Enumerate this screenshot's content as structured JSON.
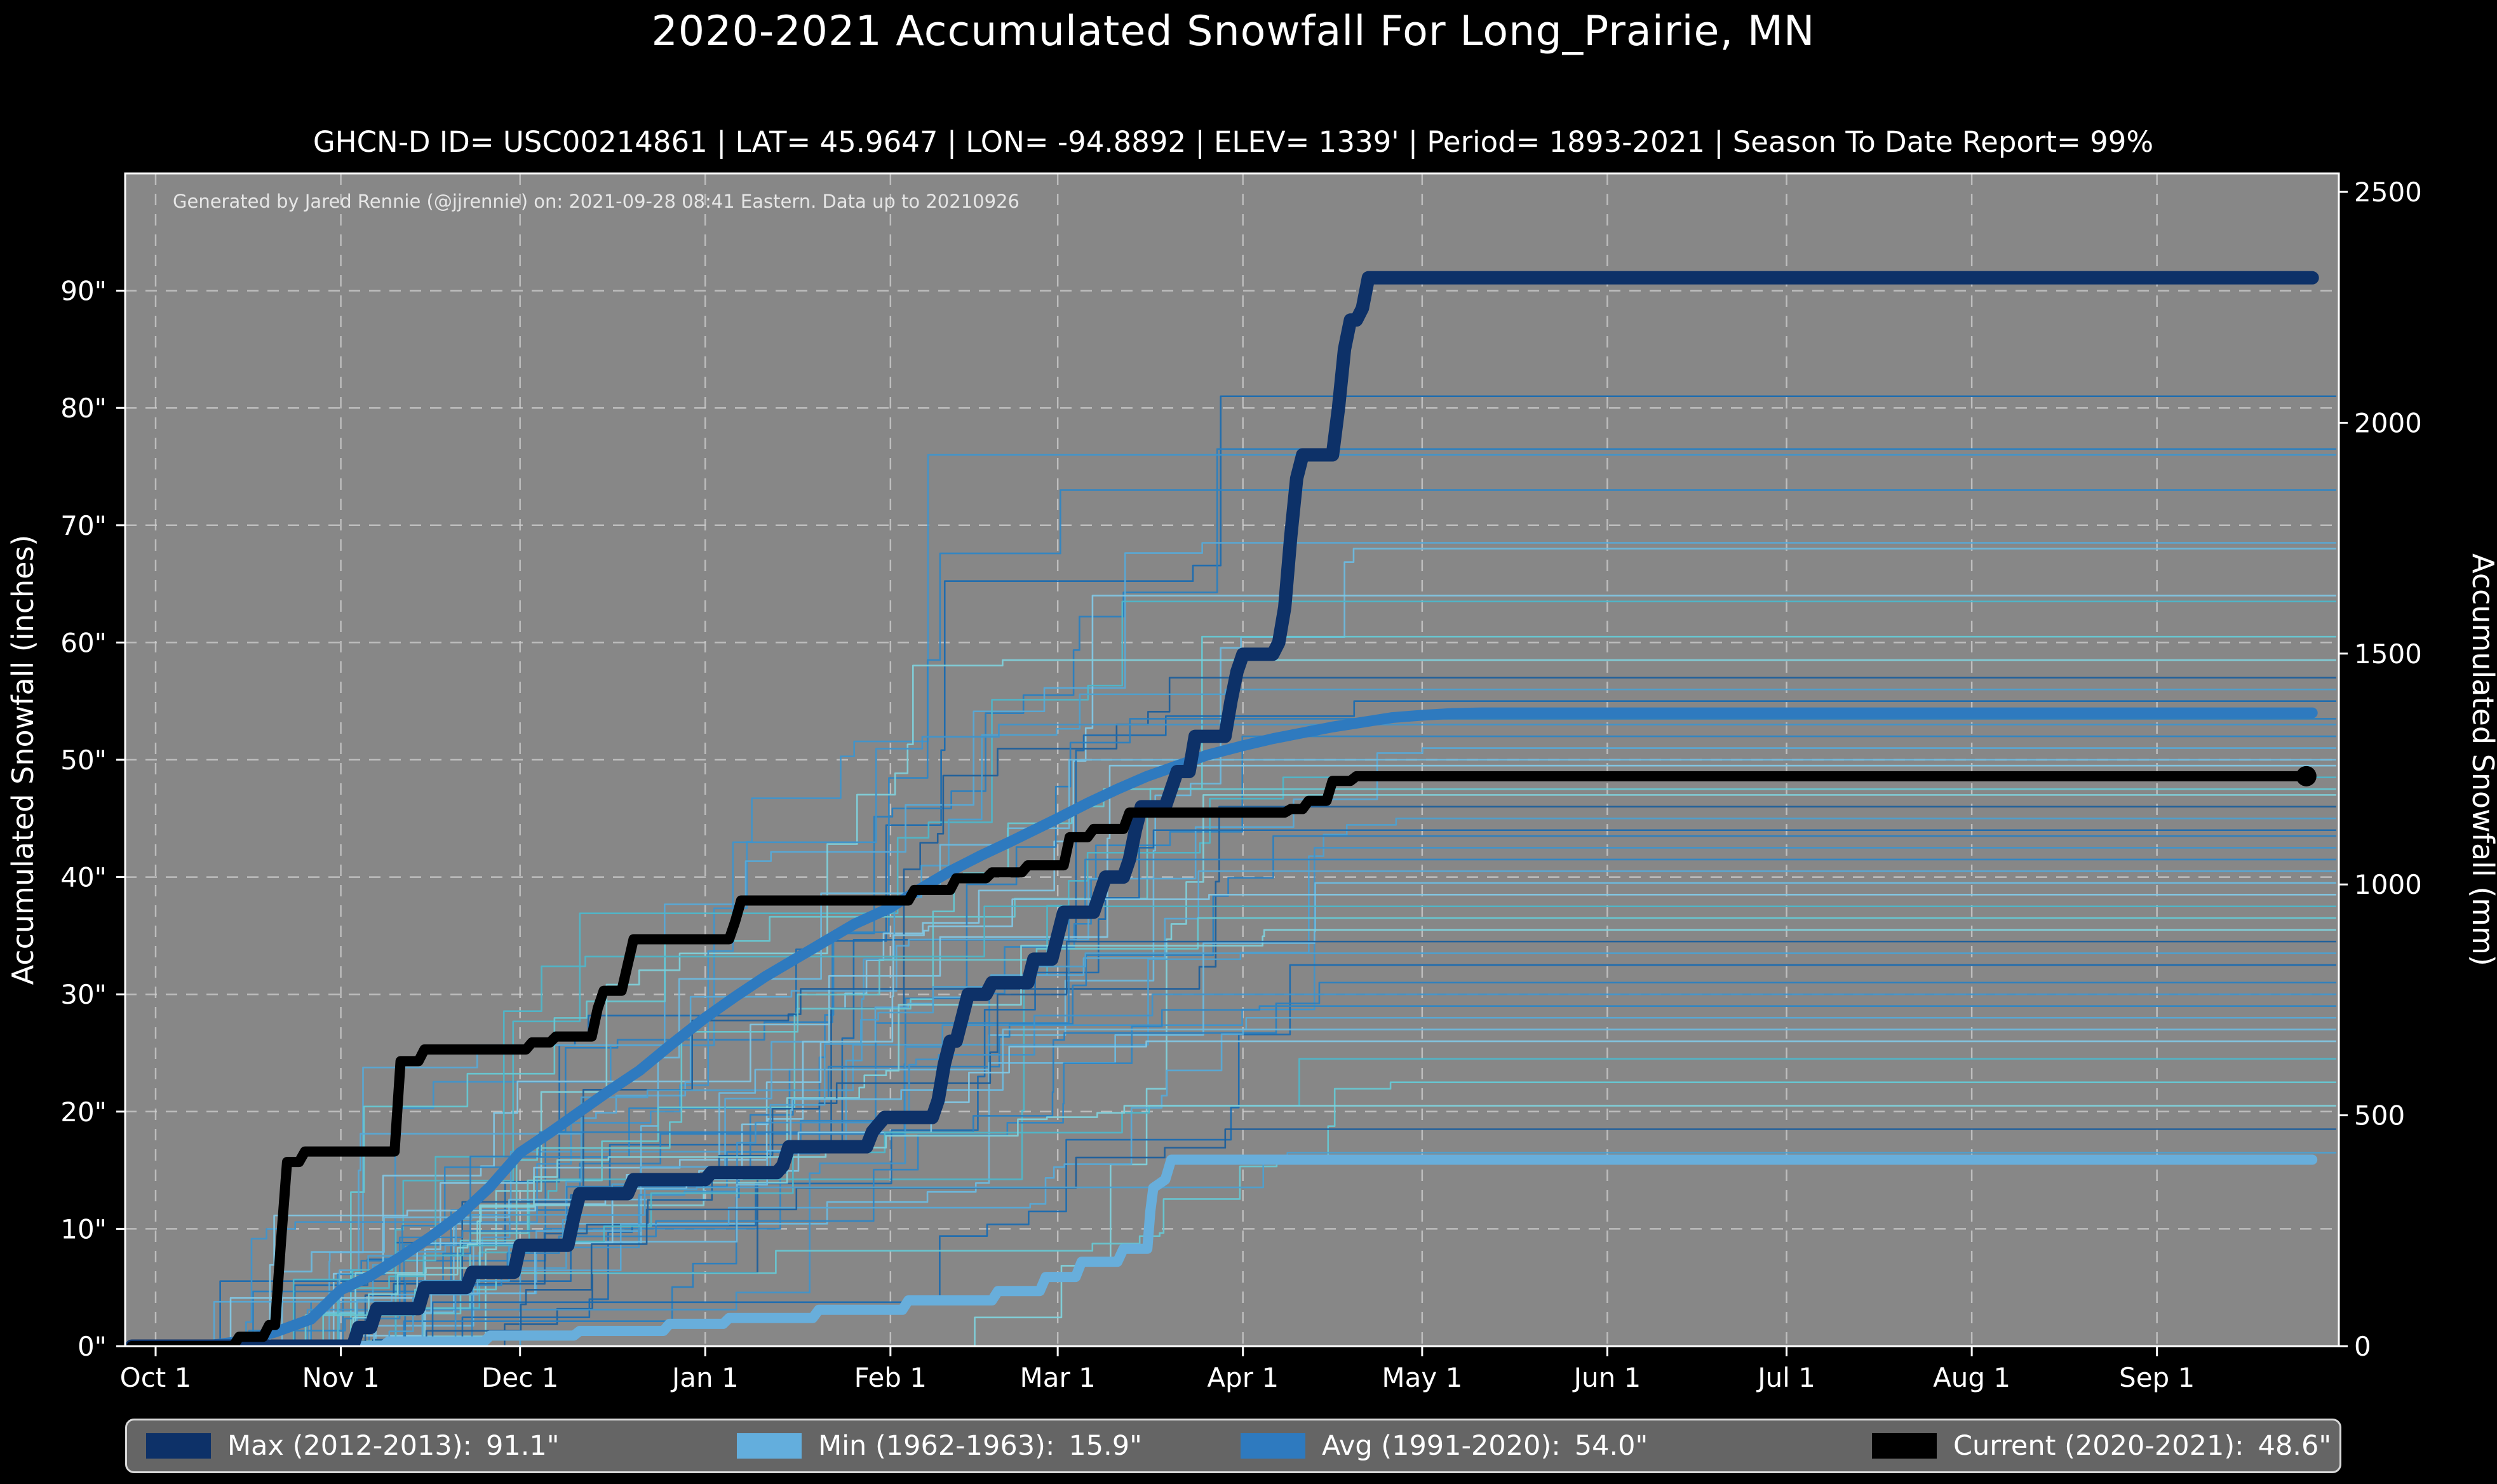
{
  "header": {
    "title": "2020-2021 Accumulated Snowfall For Long_Prairie, MN",
    "subtitle": "GHCN-D ID= USC00214861 | LAT= 45.9647 | LON= -94.8892 | ELEV= 1339' | Period= 1893-2021 | Season To Date Report= 99%"
  },
  "attribution": "Generated by Jared Rennie (@jjrennie) on: 2021-09-28 08:41 Eastern. Data up to 20210926",
  "colors": {
    "page_bg": "#000000",
    "plot_bg": "#878787",
    "grid": "#cfcfcf",
    "spine": "#ffffff",
    "text": "#ffffff",
    "legend_bg": "#656565",
    "max_line": "#0d3168",
    "min_line": "#68aedb",
    "avg_line": "#2e7abf",
    "current_line": "#000000"
  },
  "chart_data": {
    "type": "line",
    "title": "2020-2021 Accumulated Snowfall For Long_Prairie, MN",
    "xlabel": "",
    "ylabel_left": "Accumulated Snowfall (inches)",
    "ylabel_right": "Accumulated Snowfall (mm)",
    "ylim_inches": [
      0,
      100
    ],
    "ylim_mm": [
      0,
      2540
    ],
    "x_range_days": [
      -5,
      365
    ],
    "grid": "dashed",
    "legend_position": "bottom",
    "x_axis": {
      "ticks": [
        {
          "label": "Oct 1",
          "day": 0
        },
        {
          "label": "Nov 1",
          "day": 31
        },
        {
          "label": "Dec 1",
          "day": 61
        },
        {
          "label": "Jan 1",
          "day": 92
        },
        {
          "label": "Feb 1",
          "day": 123
        },
        {
          "label": "Mar 1",
          "day": 151
        },
        {
          "label": "Apr 1",
          "day": 182
        },
        {
          "label": "May 1",
          "day": 212
        },
        {
          "label": "Jun 1",
          "day": 243
        },
        {
          "label": "Jul 1",
          "day": 273
        },
        {
          "label": "Aug 1",
          "day": 304
        },
        {
          "label": "Sep 1",
          "day": 335
        }
      ]
    },
    "y_axis_left": {
      "label": "Accumulated Snowfall (inches)",
      "ticks": [
        {
          "label": "0\"",
          "value": 0
        },
        {
          "label": "10\"",
          "value": 10
        },
        {
          "label": "20\"",
          "value": 20
        },
        {
          "label": "30\"",
          "value": 30
        },
        {
          "label": "40\"",
          "value": 40
        },
        {
          "label": "50\"",
          "value": 50
        },
        {
          "label": "60\"",
          "value": 60
        },
        {
          "label": "70\"",
          "value": 70
        },
        {
          "label": "80\"",
          "value": 80
        },
        {
          "label": "90\"",
          "value": 90
        }
      ]
    },
    "y_axis_right": {
      "label": "Accumulated Snowfall (mm)",
      "ticks": [
        {
          "label": "0",
          "mm": 0
        },
        {
          "label": "500",
          "mm": 500
        },
        {
          "label": "1000",
          "mm": 1000
        },
        {
          "label": "1500",
          "mm": 1500
        },
        {
          "label": "2000",
          "mm": 2000
        },
        {
          "label": "2500",
          "mm": 2500
        }
      ]
    },
    "series": [
      {
        "key": "max",
        "name": "Max (2012-2013)",
        "final": "91.1\"",
        "color": "#0d3168",
        "width": 21,
        "points": [
          [
            -4,
            0
          ],
          [
            33,
            0
          ],
          [
            34,
            1.6
          ],
          [
            36,
            1.6
          ],
          [
            37,
            3.2
          ],
          [
            44,
            3.2
          ],
          [
            45,
            5.0
          ],
          [
            52,
            5.0
          ],
          [
            53,
            6.3
          ],
          [
            60,
            6.3
          ],
          [
            61,
            8.6
          ],
          [
            69,
            8.6
          ],
          [
            70,
            11
          ],
          [
            71,
            13
          ],
          [
            79,
            13
          ],
          [
            80,
            14.2
          ],
          [
            92,
            14.2
          ],
          [
            93,
            14.8
          ],
          [
            104,
            14.8
          ],
          [
            105,
            15.4
          ],
          [
            106,
            17
          ],
          [
            119,
            17
          ],
          [
            120,
            18.3
          ],
          [
            122,
            19.5
          ],
          [
            130,
            19.5
          ],
          [
            131,
            21
          ],
          [
            132,
            24
          ],
          [
            133,
            26
          ],
          [
            134,
            26
          ],
          [
            135,
            28
          ],
          [
            136,
            30
          ],
          [
            139,
            30
          ],
          [
            140,
            31
          ],
          [
            146,
            31
          ],
          [
            147,
            33
          ],
          [
            150,
            33
          ],
          [
            151,
            35
          ],
          [
            152,
            37
          ],
          [
            157,
            37
          ],
          [
            158,
            38.5
          ],
          [
            159,
            40
          ],
          [
            162,
            40
          ],
          [
            163,
            41.5
          ],
          [
            164,
            44
          ],
          [
            165,
            46
          ],
          [
            169,
            46
          ],
          [
            170,
            47.5
          ],
          [
            171,
            49
          ],
          [
            173,
            49
          ],
          [
            174,
            52
          ],
          [
            179,
            52
          ],
          [
            180,
            55
          ],
          [
            181,
            57.5
          ],
          [
            182,
            59
          ],
          [
            187,
            59
          ],
          [
            188,
            60
          ],
          [
            189,
            63
          ],
          [
            190,
            69
          ],
          [
            191,
            74
          ],
          [
            192,
            76
          ],
          [
            197,
            76
          ],
          [
            198,
            80
          ],
          [
            199,
            85
          ],
          [
            200,
            87.5
          ],
          [
            201,
            87.5
          ],
          [
            202,
            88.5
          ],
          [
            203,
            91.1
          ],
          [
            361,
            91.1
          ]
        ]
      },
      {
        "key": "min",
        "name": "Min (1962-1963)",
        "final": "15.9\"",
        "color": "#68aedb",
        "width": 16,
        "points": [
          [
            -4,
            0
          ],
          [
            38,
            0
          ],
          [
            39,
            0.4
          ],
          [
            55,
            0.4
          ],
          [
            56,
            0.9
          ],
          [
            70,
            0.9
          ],
          [
            71,
            1.3
          ],
          [
            85,
            1.3
          ],
          [
            86,
            1.9
          ],
          [
            95,
            1.9
          ],
          [
            96,
            2.4
          ],
          [
            110,
            2.4
          ],
          [
            111,
            3.1
          ],
          [
            125,
            3.1
          ],
          [
            126,
            3.9
          ],
          [
            140,
            3.9
          ],
          [
            141,
            4.7
          ],
          [
            148,
            4.7
          ],
          [
            149,
            5.9
          ],
          [
            154,
            5.9
          ],
          [
            155,
            7.2
          ],
          [
            161,
            7.2
          ],
          [
            162,
            8.3
          ],
          [
            166,
            8.3
          ],
          [
            166.5,
            11.5
          ],
          [
            167,
            13.5
          ],
          [
            169,
            14.2
          ],
          [
            170,
            15.9
          ],
          [
            361,
            15.9
          ]
        ]
      },
      {
        "key": "avg",
        "name": "Avg (1991-2020)",
        "final": "54.0\"",
        "color": "#2e7abf",
        "width": 17,
        "points": [
          [
            8,
            0
          ],
          [
            14,
            0.4
          ],
          [
            20,
            1.2
          ],
          [
            26,
            2.3
          ],
          [
            31,
            4.8
          ],
          [
            36,
            6.0
          ],
          [
            41,
            7.6
          ],
          [
            46,
            9.3
          ],
          [
            51,
            11.2
          ],
          [
            56,
            13.6
          ],
          [
            61,
            16.5
          ],
          [
            66,
            18.2
          ],
          [
            71,
            20.0
          ],
          [
            76,
            21.8
          ],
          [
            81,
            23.5
          ],
          [
            86,
            25.6
          ],
          [
            92,
            28.0
          ],
          [
            97,
            29.8
          ],
          [
            102,
            31.5
          ],
          [
            107,
            33.0
          ],
          [
            112,
            34.5
          ],
          [
            117,
            36.0
          ],
          [
            123,
            37.4
          ],
          [
            128,
            39.0
          ],
          [
            133,
            40.5
          ],
          [
            138,
            41.8
          ],
          [
            143,
            43.0
          ],
          [
            147,
            44.0
          ],
          [
            151,
            45.0
          ],
          [
            156,
            46.3
          ],
          [
            161,
            47.5
          ],
          [
            166,
            48.6
          ],
          [
            171,
            49.5
          ],
          [
            176,
            50.4
          ],
          [
            182,
            51.2
          ],
          [
            187,
            51.8
          ],
          [
            192,
            52.3
          ],
          [
            197,
            52.8
          ],
          [
            202,
            53.2
          ],
          [
            207,
            53.6
          ],
          [
            212,
            53.8
          ],
          [
            217,
            53.95
          ],
          [
            222,
            54.0
          ],
          [
            361,
            54.0
          ]
        ]
      },
      {
        "key": "current",
        "name": "Current (2020-2021)",
        "final": "48.6\"",
        "color": "#000000",
        "width": 16,
        "end_dot": true,
        "points": [
          [
            -4,
            0
          ],
          [
            13,
            0
          ],
          [
            14,
            0.8
          ],
          [
            18,
            0.8
          ],
          [
            19,
            1.8
          ],
          [
            20,
            1.8
          ],
          [
            21,
            9
          ],
          [
            22,
            15.7
          ],
          [
            24,
            15.7
          ],
          [
            25,
            16.6
          ],
          [
            40,
            16.6
          ],
          [
            41,
            24.3
          ],
          [
            44,
            24.3
          ],
          [
            45,
            25.3
          ],
          [
            62,
            25.3
          ],
          [
            63,
            25.9
          ],
          [
            66,
            25.9
          ],
          [
            67,
            26.4
          ],
          [
            73,
            26.4
          ],
          [
            74,
            28.8
          ],
          [
            75,
            30.3
          ],
          [
            78,
            30.3
          ],
          [
            79,
            32.5
          ],
          [
            80,
            34.7
          ],
          [
            96,
            34.7
          ],
          [
            97,
            36.2
          ],
          [
            98,
            38
          ],
          [
            126,
            38
          ],
          [
            127,
            38.9
          ],
          [
            133,
            38.9
          ],
          [
            134,
            39.9
          ],
          [
            139,
            39.9
          ],
          [
            140,
            40.4
          ],
          [
            145,
            40.4
          ],
          [
            146,
            41
          ],
          [
            152,
            41
          ],
          [
            153,
            43.4
          ],
          [
            156,
            43.4
          ],
          [
            157,
            44.1
          ],
          [
            162,
            44.1
          ],
          [
            163,
            45.5
          ],
          [
            189,
            45.5
          ],
          [
            190,
            45.8
          ],
          [
            192,
            45.8
          ],
          [
            193,
            46.5
          ],
          [
            196,
            46.5
          ],
          [
            197,
            48.2
          ],
          [
            200,
            48.2
          ],
          [
            201,
            48.6
          ],
          [
            360,
            48.6
          ]
        ]
      }
    ],
    "background_seasons": {
      "count": 48,
      "note": "historical seasons 1893-2021 context lines",
      "final_totals": [
        81,
        76.5,
        76,
        73,
        68.5,
        68,
        64,
        63.5,
        60.5,
        58.5,
        57,
        56,
        55,
        53.5,
        53,
        52,
        51,
        50,
        49.5,
        48.5,
        47.5,
        47,
        46,
        45,
        44,
        43.5,
        42.5,
        41.5,
        40.5,
        39.5,
        38.5,
        37.5,
        36.5,
        35.5,
        34.5,
        33.5,
        32.5,
        31,
        30,
        29,
        28,
        27,
        26,
        24.5,
        22.5,
        20.5,
        18.5,
        16.5
      ],
      "palette": [
        "#1b6bb0",
        "#2a7fc0",
        "#3f93cb",
        "#2f86c4",
        "#57a9d6",
        "#6db9de",
        "#82c6e3",
        "#4fb6c9",
        "#67c7d2",
        "#7fd0da",
        "#1d5f9b",
        "#4da0d0"
      ]
    }
  },
  "legend": {
    "items": [
      {
        "key": "max",
        "label": "Max (2012-2013):",
        "value": "91.1\"",
        "color": "#0d3168"
      },
      {
        "key": "min",
        "label": "Min (1962-1963):",
        "value": "15.9\"",
        "color": "#63aedd"
      },
      {
        "key": "avg",
        "label": "Avg (1991-2020):",
        "value": "54.0\"",
        "color": "#2e7abf"
      },
      {
        "key": "current",
        "label": "Current (2020-2021):",
        "value": "48.6\"",
        "color": "#000000"
      }
    ]
  }
}
